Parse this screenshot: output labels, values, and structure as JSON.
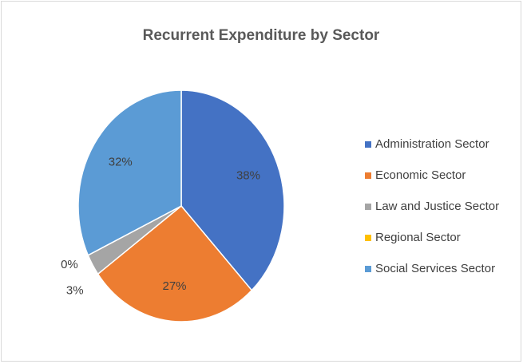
{
  "chart_data": {
    "type": "pie",
    "title": "Recurrent Expenditure by Sector",
    "categories": [
      "Administration Sector",
      "Economic Sector",
      "Law and Justice Sector",
      "Regional Sector",
      "Social Services Sector"
    ],
    "values": [
      38,
      27,
      3,
      0,
      32
    ],
    "value_labels": [
      "38%",
      "27%",
      "3%",
      "0%",
      "32%"
    ],
    "colors": [
      "#4472c4",
      "#ed7d31",
      "#a5a5a5",
      "#ffc000",
      "#5b9bd5"
    ]
  }
}
